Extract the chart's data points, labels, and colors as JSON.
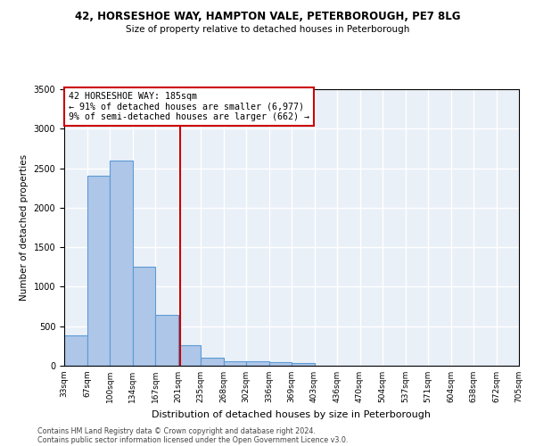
{
  "title1": "42, HORSESHOE WAY, HAMPTON VALE, PETERBOROUGH, PE7 8LG",
  "title2": "Size of property relative to detached houses in Peterborough",
  "xlabel": "Distribution of detached houses by size in Peterborough",
  "ylabel": "Number of detached properties",
  "bar_values": [
    380,
    2400,
    2600,
    1250,
    640,
    260,
    100,
    60,
    55,
    40,
    30,
    0,
    0,
    0,
    0,
    0,
    0,
    0,
    0,
    0
  ],
  "bin_labels": [
    "33sqm",
    "67sqm",
    "100sqm",
    "134sqm",
    "167sqm",
    "201sqm",
    "235sqm",
    "268sqm",
    "302sqm",
    "336sqm",
    "369sqm",
    "403sqm",
    "436sqm",
    "470sqm",
    "504sqm",
    "537sqm",
    "571sqm",
    "604sqm",
    "638sqm",
    "672sqm",
    "705sqm"
  ],
  "bar_color": "#aec6e8",
  "bar_edge_color": "#5b9bd5",
  "vline_x": 4.6,
  "vline_color": "#cc0000",
  "annotation_text": "42 HORSESHOE WAY: 185sqm\n← 91% of detached houses are smaller (6,977)\n9% of semi-detached houses are larger (662) →",
  "annotation_box_color": "#cc0000",
  "ylim": [
    0,
    3500
  ],
  "yticks": [
    0,
    500,
    1000,
    1500,
    2000,
    2500,
    3000,
    3500
  ],
  "bg_color": "#eaf0f8",
  "grid_color": "#ffffff",
  "footer1": "Contains HM Land Registry data © Crown copyright and database right 2024.",
  "footer2": "Contains public sector information licensed under the Open Government Licence v3.0."
}
